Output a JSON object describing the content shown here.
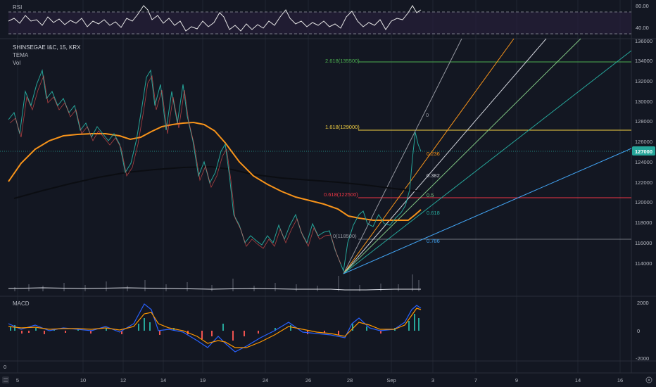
{
  "colors": {
    "background": "#131722",
    "grid": "#1f2431",
    "text": "#b2b5be",
    "rsi_line": "#e6e6e6",
    "rsi_band": "#2a1f3d",
    "ema": "#f7931a",
    "sma": "#0b0d12",
    "candle_up": "#26a69a",
    "candle_down": "#ef5350",
    "price_badge": "#26a69a",
    "macd_line": "#2962ff",
    "signal_line": "#ff9800",
    "volume": "#3a3e4a"
  },
  "legend": {
    "rsi": "RSI",
    "symbol": "SHINSEGAE I&C, 15, KRX",
    "tema": "TEMA",
    "vol": "Vol",
    "macd": "MACD"
  },
  "rsi_axis": [
    "80.00",
    "40.00"
  ],
  "price_axis": [
    "136000",
    "134000",
    "132000",
    "130000",
    "128000",
    "126000",
    "124000",
    "122000",
    "120000",
    "118000",
    "116000",
    "114000"
  ],
  "current_price": "127000",
  "macd_axis": [
    "2000",
    "0",
    "-2000"
  ],
  "left_axis_label": "0",
  "time_axis": [
    "5",
    "10",
    "12",
    "14",
    "19",
    "24",
    "26",
    "28",
    "Sep",
    "3",
    "7",
    "9",
    "14",
    "16"
  ],
  "fib_extension_levels": [
    {
      "label": "2.618(135500)",
      "price": 135500,
      "color": "#4caf50"
    },
    {
      "label": "1.618(129000)",
      "price": 129000,
      "color": "#f5d142"
    },
    {
      "label": "0.618(122500)",
      "price": 122500,
      "color": "#f23645"
    }
  ],
  "fan_labels": [
    {
      "label": "0",
      "color": "#9598a1"
    },
    {
      "label": "0.236",
      "color": "#f7931a"
    },
    {
      "label": "0.382",
      "color": "#d1d4dc"
    },
    {
      "label": "0.5",
      "color": "#81c784"
    },
    {
      "label": "0.618",
      "color": "#26a69a"
    },
    {
      "label": "0.786",
      "color": "#42a5f5"
    }
  ],
  "marker_label": "0(118500)",
  "corner_icon": "tv-logo-icon"
}
